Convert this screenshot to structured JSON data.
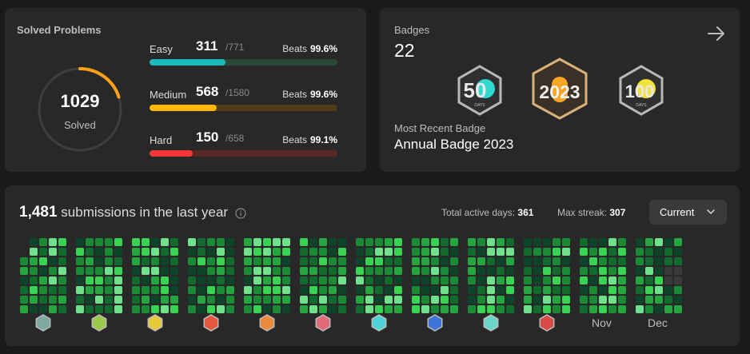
{
  "solved": {
    "title": "Solved Problems",
    "total": "1029",
    "total_label": "Solved",
    "progress": 0.2,
    "difficulties": [
      {
        "name": "Easy",
        "count": "311",
        "total": "/771",
        "beats_label": "Beats",
        "beats": "99.6%",
        "fraction": 0.403,
        "color": "#1cbaba",
        "track": "#2a4a37"
      },
      {
        "name": "Medium",
        "count": "568",
        "total": "/1580",
        "beats_label": "Beats",
        "beats": "99.6%",
        "fraction": 0.359,
        "color": "#ffb700",
        "track": "#4d3d17"
      },
      {
        "name": "Hard",
        "count": "150",
        "total": "/658",
        "beats_label": "Beats",
        "beats": "99.1%",
        "fraction": 0.228,
        "color": "#f63737",
        "track": "#5a2626"
      }
    ]
  },
  "badges": {
    "label": "Badges",
    "count": "22",
    "recent_label": "Most Recent Badge",
    "recent_name": "Annual Badge 2023",
    "items": [
      {
        "name": "50 days badge",
        "text": "50",
        "sub": "DAYS"
      },
      {
        "name": "annual badge 2023",
        "text": "2023",
        "sub": ""
      },
      {
        "name": "100 days badge",
        "text": "100",
        "sub": "DAYS"
      }
    ]
  },
  "submissions": {
    "count": "1,481",
    "text": "submissions in the last year",
    "active_label": "Total active days:",
    "active_value": "361",
    "streak_label": "Max streak:",
    "streak_value": "307",
    "dropdown": "Current",
    "months": [
      {
        "label": "",
        "badge_color": "#7fa9a0"
      },
      {
        "label": "",
        "badge_color": "#9bc84a"
      },
      {
        "label": "",
        "badge_color": "#e6c93a"
      },
      {
        "label": "",
        "badge_color": "#e2593f"
      },
      {
        "label": "",
        "badge_color": "#e98a3c"
      },
      {
        "label": "",
        "badge_color": "#e46a7a"
      },
      {
        "label": "",
        "badge_color": "#4fd1d8"
      },
      {
        "label": "",
        "badge_color": "#3e74d6"
      },
      {
        "label": "",
        "badge_color": "#6ad6c8"
      },
      {
        "label": "",
        "badge_color": "#d84a4a"
      },
      {
        "label": "Nov",
        "badge_color": ""
      },
      {
        "label": "Dec",
        "badge_color": ""
      }
    ]
  }
}
